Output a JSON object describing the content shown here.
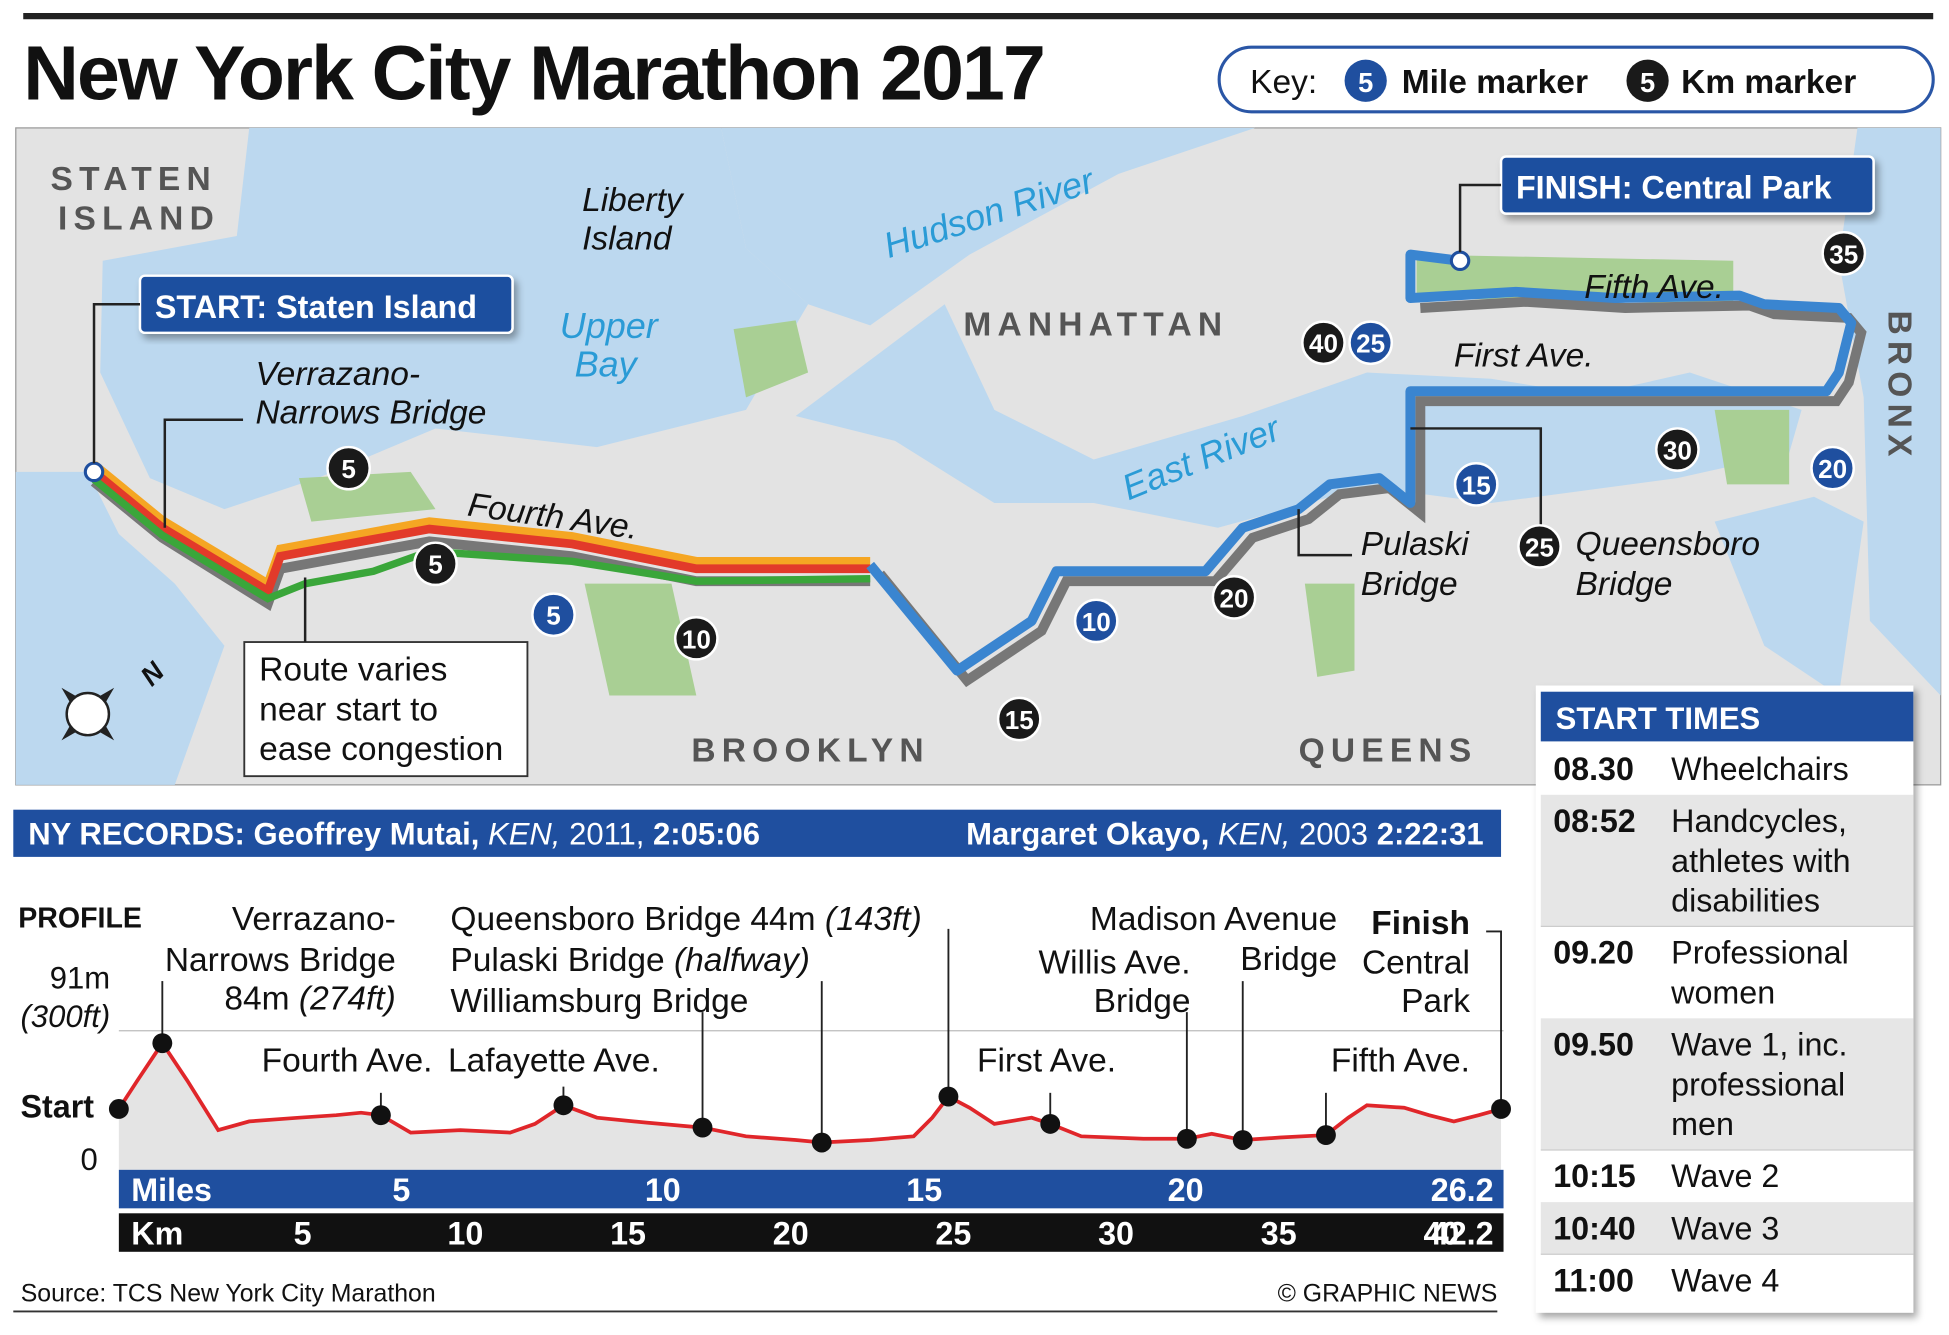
{
  "header": {
    "title": "New York City Marathon 2017"
  },
  "key": {
    "label": "Key:",
    "mile_example": "5",
    "mile_label": "Mile marker",
    "km_example": "5",
    "km_label": "Km marker"
  },
  "map": {
    "labels": {
      "staten_island": [
        "STATEN",
        "ISLAND"
      ],
      "liberty_island": [
        "Liberty",
        "Island"
      ],
      "hudson_river": "Hudson River",
      "upper_bay": [
        "Upper",
        "Bay"
      ],
      "manhattan": "MANHATTAN",
      "bronx": "BRONX",
      "east_river": "East River",
      "brooklyn": "BROOKLYN",
      "queens": "QUEENS",
      "verrazano": [
        "Verrazano-",
        "Narrows Bridge"
      ],
      "fourth_ave": "Fourth Ave.",
      "pulaski": [
        "Pulaski",
        "Bridge"
      ],
      "queensboro": [
        "Queensboro",
        "Bridge"
      ],
      "first_ave": "First Ave.",
      "fifth_ave": "Fifth Ave.",
      "start": "START: Staten Island",
      "finish": "FINISH: Central Park",
      "route_note": [
        "Route varies",
        "near start to",
        "ease congestion"
      ],
      "compass": "N"
    },
    "mile_markers": [
      "5",
      "10",
      "15",
      "20",
      "25"
    ],
    "km_markers": [
      "5",
      "5",
      "10",
      "15",
      "20",
      "25",
      "30",
      "35",
      "40"
    ]
  },
  "records": {
    "label": "NY RECORDS:",
    "entries": [
      {
        "name": "Geoffrey Mutai,",
        "country": "KEN,",
        "year": "2011,",
        "time": "2:05:06"
      },
      {
        "name": "Margaret Okayo,",
        "country": "KEN,",
        "year": "2003",
        "time": "2:22:31"
      }
    ]
  },
  "profile": {
    "title": "PROFILE",
    "top_label": [
      "91m",
      "(300ft)"
    ],
    "start_label": "Start",
    "zero_label": "0",
    "annotations": {
      "verrazano": [
        "Verrazano-",
        "Narrows Bridge",
        "84m",
        "(274ft)"
      ],
      "fourth_ave": "Fourth Ave.",
      "lafayette_ave": "Lafayette Ave.",
      "queensboro": [
        "Queensboro Bridge 44m",
        "(143ft)"
      ],
      "pulaski": [
        "Pulaski Bridge",
        "(halfway)"
      ],
      "williamsburg": "Williamsburg Bridge",
      "first_ave": "First Ave.",
      "willis": [
        "Willis Ave.",
        "Bridge"
      ],
      "madison": [
        "Madison Avenue",
        "Bridge"
      ],
      "fifth_ave": "Fifth Ave.",
      "finish": [
        "Finish",
        "Central",
        "Park"
      ]
    },
    "axis": {
      "miles_label": "Miles",
      "miles_ticks": [
        5,
        10,
        15,
        20,
        26.2
      ],
      "km_label": "Km",
      "km_ticks": [
        5,
        10,
        15,
        20,
        25,
        30,
        35,
        40,
        42.2
      ]
    }
  },
  "start_times": {
    "title": "START TIMES",
    "rows": [
      {
        "time": "08.30",
        "label": [
          "Wheelchairs"
        ]
      },
      {
        "time": "08:52",
        "label": [
          "Handcycles,",
          "athletes with",
          "disabilities"
        ]
      },
      {
        "time": "09.20",
        "label": [
          "Professional",
          "women"
        ]
      },
      {
        "time": "09.50",
        "label": [
          "Wave 1, inc.",
          "professional",
          "men"
        ]
      },
      {
        "time": "10:15",
        "label": [
          "Wave 2"
        ]
      },
      {
        "time": "10:40",
        "label": [
          "Wave 3"
        ]
      },
      {
        "time": "11:00",
        "label": [
          "Wave 4"
        ]
      }
    ]
  },
  "footer": {
    "source": "Source: TCS New York City Marathon",
    "credit": "© GRAPHIC NEWS"
  }
}
